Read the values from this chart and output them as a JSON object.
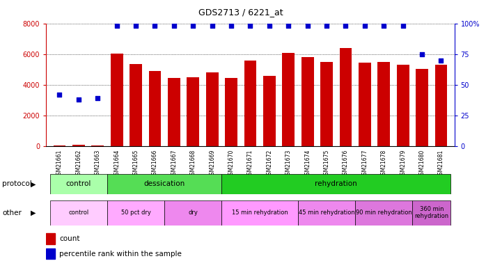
{
  "title": "GDS2713 / 6221_at",
  "samples": [
    "GSM21661",
    "GSM21662",
    "GSM21663",
    "GSM21664",
    "GSM21665",
    "GSM21666",
    "GSM21667",
    "GSM21668",
    "GSM21669",
    "GSM21670",
    "GSM21671",
    "GSM21672",
    "GSM21673",
    "GSM21674",
    "GSM21675",
    "GSM21676",
    "GSM21677",
    "GSM21678",
    "GSM21679",
    "GSM21680",
    "GSM21681"
  ],
  "count_values": [
    50,
    100,
    60,
    6050,
    5350,
    4900,
    4450,
    4500,
    4800,
    4450,
    5600,
    4600,
    6100,
    5800,
    5500,
    6400,
    5450,
    5500,
    5300,
    5050,
    5300
  ],
  "percentile_values": [
    42,
    38,
    39,
    98,
    98,
    98,
    98,
    98,
    98,
    98,
    98,
    98,
    98,
    98,
    98,
    98,
    98,
    98,
    98,
    75,
    70
  ],
  "count_color": "#cc0000",
  "percentile_color": "#0000cc",
  "ylim_left": [
    0,
    8000
  ],
  "ylim_right": [
    0,
    100
  ],
  "yticks_left": [
    0,
    2000,
    4000,
    6000,
    8000
  ],
  "yticks_right": [
    0,
    25,
    50,
    75,
    100
  ],
  "protocol_groups": [
    {
      "label": "control",
      "start": 0,
      "end": 3,
      "color": "#aaffaa"
    },
    {
      "label": "dessication",
      "start": 3,
      "end": 9,
      "color": "#55dd55"
    },
    {
      "label": "rehydration",
      "start": 9,
      "end": 21,
      "color": "#22cc22"
    }
  ],
  "other_groups": [
    {
      "label": "control",
      "start": 0,
      "end": 3,
      "color": "#ffccff"
    },
    {
      "label": "50 pct dry",
      "start": 3,
      "end": 6,
      "color": "#ffaaff"
    },
    {
      "label": "dry",
      "start": 6,
      "end": 9,
      "color": "#ee88ee"
    },
    {
      "label": "15 min rehydration",
      "start": 9,
      "end": 13,
      "color": "#ff99ff"
    },
    {
      "label": "45 min rehydration",
      "start": 13,
      "end": 16,
      "color": "#ee88ee"
    },
    {
      "label": "90 min rehydration",
      "start": 16,
      "end": 19,
      "color": "#dd77dd"
    },
    {
      "label": "360 min\nrehydration",
      "start": 19,
      "end": 21,
      "color": "#cc66cc"
    }
  ],
  "legend_count_label": "count",
  "legend_pct_label": "percentile rank within the sample",
  "protocol_label": "protocol",
  "other_label": "other"
}
